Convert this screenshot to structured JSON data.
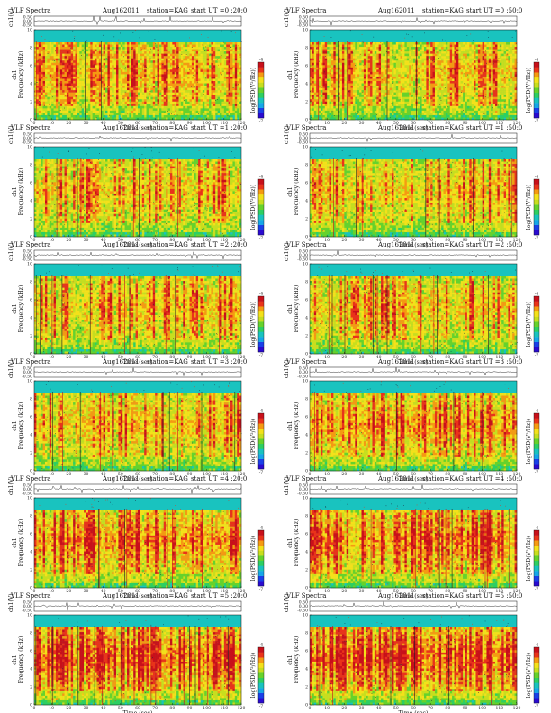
{
  "palette": [
    "#2a0ad0",
    "#1a40e8",
    "#15a6e8",
    "#19c3bf",
    "#2ecf62",
    "#66d22c",
    "#c8de1e",
    "#f4e11a",
    "#f59a12",
    "#e9331a",
    "#c8101a"
  ],
  "panel_text": {
    "header_left": "VLF Spectra",
    "date": "Aug162011",
    "station": "station=KAG",
    "start_prefix": "start  UT ="
  },
  "chart_data": [
    {
      "type": "heatmap",
      "start_ut": "0 :20:0",
      "title": "VLF Spectra        Aug162011        station=KAG  start  UT =0 :20:0",
      "top_ylabel": "ch1(V)",
      "top_ylim": [
        -0.5,
        0.5
      ],
      "top_yticks": [
        "0.50",
        "0.00",
        "-0.50"
      ],
      "ylabel": "ch1\nFrequency (kHz)",
      "ylim": [
        0,
        10
      ],
      "yticks": [
        0,
        2,
        4,
        6,
        8,
        10
      ],
      "xlabel": "Time (sec)",
      "xlim": [
        0,
        120
      ],
      "xticks": [
        0,
        10,
        20,
        30,
        40,
        50,
        60,
        70,
        80,
        90,
        100,
        110,
        120
      ],
      "colorbar_label": "log(PSD(V²/Hz))",
      "colorbar_ticks": [
        "-4",
        "-7"
      ],
      "intensity": 0.45
    },
    {
      "type": "heatmap",
      "start_ut": "0 :50:0",
      "title": "VLF Spectra        Aug162011        station=KAG  start  UT =0 :50:0",
      "top_ylabel": "ch1(V)",
      "top_ylim": [
        -0.5,
        0.5
      ],
      "top_yticks": [
        "0.50",
        "0.00",
        "-0.50"
      ],
      "ylabel": "ch1\nFrequency (kHz)",
      "ylim": [
        0,
        10
      ],
      "yticks": [
        0,
        2,
        4,
        6,
        8,
        10
      ],
      "xlabel": "Time (sec)",
      "xlim": [
        0,
        120
      ],
      "xticks": [
        0,
        10,
        20,
        30,
        40,
        50,
        60,
        70,
        80,
        90,
        100,
        110,
        120
      ],
      "colorbar_label": "log(PSD(V²/Hz))",
      "colorbar_ticks": [
        "-4",
        "-7"
      ],
      "intensity": 0.42
    },
    {
      "type": "heatmap",
      "start_ut": "1 :20:0",
      "title": "VLF Spectra        Aug162011        station=KAG  start  UT =1 :20:0",
      "top_ylabel": "ch1(V)",
      "top_ylim": [
        -0.5,
        0.5
      ],
      "top_yticks": [
        "0.50",
        "0.00",
        "-0.50"
      ],
      "ylabel": "ch1\nFrequency (kHz)",
      "ylim": [
        0,
        10
      ],
      "yticks": [
        0,
        2,
        4,
        6,
        8,
        10
      ],
      "xlabel": "Time (sec)",
      "xlim": [
        0,
        120
      ],
      "xticks": [
        0,
        10,
        20,
        30,
        40,
        50,
        60,
        70,
        80,
        90,
        100,
        110,
        120
      ],
      "colorbar_label": "log(PSD(V²/Hz))",
      "colorbar_ticks": [
        "-4",
        "-7"
      ],
      "intensity": 0.4
    },
    {
      "type": "heatmap",
      "start_ut": "1 :50:0",
      "title": "VLF Spectra        Aug162011        station=KAG  start  UT =1 :50:0",
      "top_ylabel": "ch1(V)",
      "top_ylim": [
        -0.5,
        0.5
      ],
      "top_yticks": [
        "0.50",
        "0.00",
        "-0.50"
      ],
      "ylabel": "ch1\nFrequency (kHz)",
      "ylim": [
        0,
        10
      ],
      "yticks": [
        0,
        2,
        4,
        6,
        8,
        10
      ],
      "xlabel": "Time (sec)",
      "xlim": [
        0,
        120
      ],
      "xticks": [
        0,
        10,
        20,
        30,
        40,
        50,
        60,
        70,
        80,
        90,
        100,
        110,
        120
      ],
      "colorbar_label": "log(PSD(V²/Hz))",
      "colorbar_ticks": [
        "-4",
        "-7"
      ],
      "intensity": 0.38
    },
    {
      "type": "heatmap",
      "start_ut": "2 :20:0",
      "title": "VLF Spectra        Aug162011        station=KAG  start  UT =2 :20:0",
      "top_ylabel": "ch1(V)",
      "top_ylim": [
        -0.5,
        0.5
      ],
      "top_yticks": [
        "0.50",
        "0.00",
        "-0.50"
      ],
      "ylabel": "ch1\nFrequency (kHz)",
      "ylim": [
        0,
        10
      ],
      "yticks": [
        0,
        2,
        4,
        6,
        8,
        10
      ],
      "xlabel": "Time (sec)",
      "xlim": [
        0,
        120
      ],
      "xticks": [
        0,
        10,
        20,
        30,
        40,
        50,
        60,
        70,
        80,
        90,
        100,
        110,
        120
      ],
      "colorbar_label": "log(PSD(V²/Hz))",
      "colorbar_ticks": [
        "-4",
        "-7"
      ],
      "intensity": 0.4
    },
    {
      "type": "heatmap",
      "start_ut": "2 :50:0",
      "title": "VLF Spectra        Aug162011        station=KAG  start  UT =2 :50:0",
      "top_ylabel": "ch1(V)",
      "top_ylim": [
        -0.5,
        0.5
      ],
      "top_yticks": [
        "0.50",
        "0.00",
        "-0.50"
      ],
      "ylabel": "ch1\nFrequency (kHz)",
      "ylim": [
        0,
        10
      ],
      "yticks": [
        0,
        2,
        4,
        6,
        8,
        10
      ],
      "xlabel": "Time (sec)",
      "xlim": [
        0,
        120
      ],
      "xticks": [
        0,
        10,
        20,
        30,
        40,
        50,
        60,
        70,
        80,
        90,
        100,
        110,
        120
      ],
      "colorbar_label": "log(PSD(V²/Hz))",
      "colorbar_ticks": [
        "-4",
        "-7"
      ],
      "intensity": 0.38
    },
    {
      "type": "heatmap",
      "start_ut": "3 :20:0",
      "title": "VLF Spectra        Aug162011        station=KAG  start  UT =3 :20:0",
      "top_ylabel": "ch1(V)",
      "top_ylim": [
        -0.5,
        0.5
      ],
      "top_yticks": [
        "0.50",
        "0.00",
        "-0.50"
      ],
      "ylabel": "ch1\nFrequency (kHz)",
      "ylim": [
        0,
        10
      ],
      "yticks": [
        0,
        2,
        4,
        6,
        8,
        10
      ],
      "xlabel": "Time (sec)",
      "xlim": [
        0,
        120
      ],
      "xticks": [
        0,
        10,
        20,
        30,
        40,
        50,
        60,
        70,
        80,
        90,
        100,
        110,
        120
      ],
      "colorbar_label": "log(PSD(V²/Hz))",
      "colorbar_ticks": [
        "-4",
        "-7"
      ],
      "intensity": 0.42
    },
    {
      "type": "heatmap",
      "start_ut": "3 :50:0",
      "title": "VLF Spectra        Aug162011        station=KAG  start  UT =3 :50:0",
      "top_ylabel": "ch1(V)",
      "top_ylim": [
        -0.5,
        0.5
      ],
      "top_yticks": [
        "0.50",
        "0.00",
        "-0.50"
      ],
      "ylabel": "ch1\nFrequency (kHz)",
      "ylim": [
        0,
        10
      ],
      "yticks": [
        0,
        2,
        4,
        6,
        8,
        10
      ],
      "xlabel": "Time (sec)",
      "xlim": [
        0,
        120
      ],
      "xticks": [
        0,
        10,
        20,
        30,
        40,
        50,
        60,
        70,
        80,
        90,
        100,
        110,
        120
      ],
      "colorbar_label": "log(PSD(V²/Hz))",
      "colorbar_ticks": [
        "-4",
        "-7"
      ],
      "intensity": 0.55
    },
    {
      "type": "heatmap",
      "start_ut": "4 :20:0",
      "title": "VLF Spectra        Aug162011        station=KAG  start  UT =4 :20:0",
      "top_ylabel": "ch1(V)",
      "top_ylim": [
        -0.5,
        0.5
      ],
      "top_yticks": [
        "0.50",
        "0.00",
        "-0.50"
      ],
      "ylabel": "ch1\nFrequency (kHz)",
      "ylim": [
        0,
        10
      ],
      "yticks": [
        0,
        2,
        4,
        6,
        8,
        10
      ],
      "xlabel": "Time (sec)",
      "xlim": [
        0,
        120
      ],
      "xticks": [
        0,
        10,
        20,
        30,
        40,
        50,
        60,
        70,
        80,
        90,
        100,
        110,
        120
      ],
      "colorbar_label": "log(PSD(V²/Hz))",
      "colorbar_ticks": [
        "-4",
        "-7"
      ],
      "intensity": 0.62
    },
    {
      "type": "heatmap",
      "start_ut": "4 :50:0",
      "title": "VLF Spectra        Aug162011        station=KAG  start  UT =4 :50:0",
      "top_ylabel": "ch1(V)",
      "top_ylim": [
        -0.5,
        0.5
      ],
      "top_yticks": [
        "0.50",
        "0.00",
        "-0.50"
      ],
      "ylabel": "ch1\nFrequency (kHz)",
      "ylim": [
        0,
        10
      ],
      "yticks": [
        0,
        2,
        4,
        6,
        8,
        10
      ],
      "xlabel": "Time (sec)",
      "xlim": [
        0,
        120
      ],
      "xticks": [
        0,
        10,
        20,
        30,
        40,
        50,
        60,
        70,
        80,
        90,
        100,
        110,
        120
      ],
      "colorbar_label": "log(PSD(V²/Hz))",
      "colorbar_ticks": [
        "-4",
        "-7"
      ],
      "intensity": 0.6
    },
    {
      "type": "heatmap",
      "start_ut": "5 :20:0",
      "title": "VLF Spectra        Aug162011        station=KAG  start  UT =5 :20:0",
      "top_ylabel": "ch1(V)",
      "top_ylim": [
        -0.5,
        0.5
      ],
      "top_yticks": [
        "0.50",
        "0.00",
        "-0.50"
      ],
      "ylabel": "ch1\nFrequency (kHz)",
      "ylim": [
        0,
        10
      ],
      "yticks": [
        0,
        2,
        4,
        6,
        8,
        10
      ],
      "xlabel": "Time (sec)",
      "xlim": [
        0,
        120
      ],
      "xticks": [
        0,
        10,
        20,
        30,
        40,
        50,
        60,
        70,
        80,
        90,
        100,
        110,
        120
      ],
      "colorbar_label": "log(PSD(V²/Hz))",
      "colorbar_ticks": [
        "-4",
        "-7"
      ],
      "intensity": 0.72
    },
    {
      "type": "heatmap",
      "start_ut": "5 :50:0",
      "title": "VLF Spectra        Aug162011        station=KAG  start  UT =5 :50:0",
      "top_ylabel": "ch1(V)",
      "top_ylim": [
        -0.5,
        0.5
      ],
      "top_yticks": [
        "0.50",
        "0.00",
        "-0.50"
      ],
      "ylabel": "ch1\nFrequency (kHz)",
      "ylim": [
        0,
        10
      ],
      "yticks": [
        0,
        2,
        4,
        6,
        8,
        10
      ],
      "xlabel": "Time (sec)",
      "xlim": [
        0,
        120
      ],
      "xticks": [
        0,
        10,
        20,
        30,
        40,
        50,
        60,
        70,
        80,
        90,
        100,
        110,
        120
      ],
      "colorbar_label": "log(PSD(V²/Hz))",
      "colorbar_ticks": [
        "-4",
        "-7"
      ],
      "intensity": 0.72
    }
  ]
}
